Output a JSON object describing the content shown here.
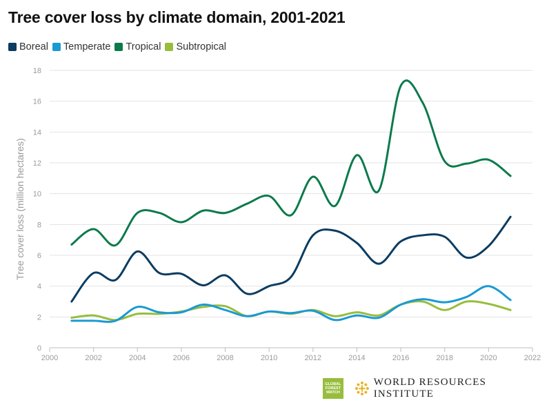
{
  "title": "Tree cover loss by climate domain, 2001-2021",
  "legend": [
    {
      "label": "Boreal",
      "color": "#0b3c61"
    },
    {
      "label": "Temperate",
      "color": "#1a9ad2"
    },
    {
      "label": "Tropical",
      "color": "#0b7a4b"
    },
    {
      "label": "Subtropical",
      "color": "#97bd3d"
    }
  ],
  "logos": {
    "gfw_lines": [
      "GLOBAL",
      "FOREST",
      "WATCH"
    ],
    "wri_text": "WORLD RESOURCES INSTITUTE",
    "gfw_color": "#97bd3d",
    "wri_color": "#e8b32a"
  },
  "chart_data": {
    "type": "line",
    "title": "Tree cover loss by climate domain, 2001-2021",
    "xlabel": "",
    "ylabel": "Tree cover loss (million hectares)",
    "xlim": [
      2000,
      2022
    ],
    "ylim": [
      0,
      18
    ],
    "xticks": [
      2000,
      2002,
      2004,
      2006,
      2008,
      2010,
      2012,
      2014,
      2016,
      2018,
      2020,
      2022
    ],
    "yticks": [
      0,
      2,
      4,
      6,
      8,
      10,
      12,
      14,
      16,
      18
    ],
    "grid": "horizontal",
    "legend_position": "top-left",
    "x": [
      2001,
      2002,
      2003,
      2004,
      2005,
      2006,
      2007,
      2008,
      2009,
      2010,
      2011,
      2012,
      2013,
      2014,
      2015,
      2016,
      2017,
      2018,
      2019,
      2020,
      2021
    ],
    "series": [
      {
        "name": "Boreal",
        "color": "#0b3c61",
        "values": [
          3.0,
          4.85,
          4.4,
          6.25,
          4.85,
          4.8,
          4.05,
          4.7,
          3.5,
          4.0,
          4.6,
          7.3,
          7.6,
          6.8,
          5.45,
          6.9,
          7.3,
          7.2,
          5.85,
          6.6,
          8.5
        ]
      },
      {
        "name": "Temperate",
        "color": "#1a9ad2",
        "values": [
          1.75,
          1.75,
          1.75,
          2.65,
          2.3,
          2.3,
          2.8,
          2.45,
          2.05,
          2.35,
          2.25,
          2.4,
          1.8,
          2.1,
          1.95,
          2.8,
          3.15,
          2.95,
          3.3,
          4.0,
          3.1
        ]
      },
      {
        "name": "Tropical",
        "color": "#0b7a4b",
        "values": [
          6.7,
          7.7,
          6.65,
          8.75,
          8.75,
          8.15,
          8.9,
          8.75,
          9.35,
          9.85,
          8.6,
          11.1,
          9.2,
          12.5,
          10.2,
          17.0,
          15.9,
          12.1,
          11.95,
          12.2,
          11.15
        ]
      },
      {
        "name": "Subtropical",
        "color": "#97bd3d",
        "values": [
          1.95,
          2.1,
          1.8,
          2.2,
          2.2,
          2.35,
          2.65,
          2.7,
          2.05,
          2.35,
          2.2,
          2.45,
          2.05,
          2.3,
          2.1,
          2.8,
          3.0,
          2.45,
          3.0,
          2.85,
          2.45
        ]
      }
    ]
  }
}
